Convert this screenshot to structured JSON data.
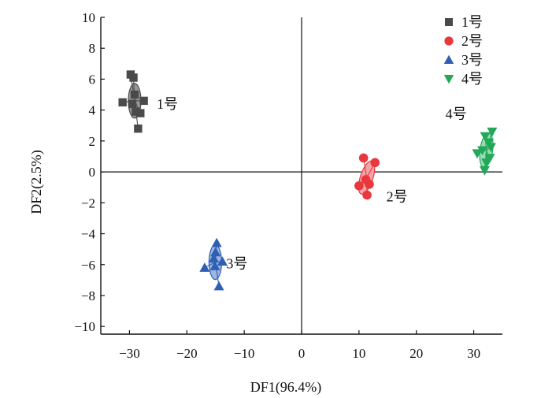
{
  "chart_data": {
    "type": "scatter",
    "title": "",
    "xlabel": "DF1(96.4%)",
    "ylabel": "DF2(2.5%)",
    "xlim": [
      -35,
      35
    ],
    "ylim": [
      -10.5,
      10
    ],
    "xticks": [
      -30,
      -20,
      -10,
      0,
      10,
      20,
      30
    ],
    "yticks": [
      -10,
      -8,
      -6,
      -4,
      -2,
      0,
      2,
      4,
      6,
      8,
      10
    ],
    "xtick_labels": [
      "−30",
      "−20",
      "−10",
      "0",
      "10",
      "20",
      "30"
    ],
    "ytick_labels": [
      "−10",
      "−8",
      "−6",
      "−4",
      "−2",
      "0",
      "2",
      "4",
      "6",
      "8",
      "10"
    ],
    "reference_lines": {
      "x": 0,
      "y": 0
    },
    "legend_position": "top-right",
    "series": [
      {
        "name": "1号",
        "marker": "square",
        "color": "#4a4a4a",
        "ellipse_color": "#9a9a9a",
        "label": "1号",
        "points": [
          [
            -29.8,
            6.3
          ],
          [
            -29.3,
            6.1
          ],
          [
            -31.2,
            4.5
          ],
          [
            -29.5,
            4.4
          ],
          [
            -28.9,
            3.9
          ],
          [
            -28.1,
            3.8
          ],
          [
            -27.5,
            4.6
          ],
          [
            -28.5,
            2.8
          ],
          [
            -29.1,
            5.0
          ]
        ]
      },
      {
        "name": "2号",
        "marker": "circle",
        "color": "#e8383d",
        "ellipse_color": "#f4a4a7",
        "label": "2号",
        "points": [
          [
            10.8,
            0.9
          ],
          [
            12.8,
            0.6
          ],
          [
            11.2,
            -0.5
          ],
          [
            11.8,
            -0.8
          ],
          [
            10.0,
            -0.9
          ],
          [
            11.4,
            -1.5
          ]
        ]
      },
      {
        "name": "3号",
        "marker": "triangle-up",
        "color": "#2f5fb3",
        "ellipse_color": "#9db7e0",
        "label": "3号",
        "points": [
          [
            -14.8,
            -4.6
          ],
          [
            -15.0,
            -5.2
          ],
          [
            -15.3,
            -5.6
          ],
          [
            -13.8,
            -5.8
          ],
          [
            -16.9,
            -6.2
          ],
          [
            -14.4,
            -7.4
          ],
          [
            -15.1,
            -6.1
          ]
        ]
      },
      {
        "name": "4号",
        "marker": "triangle-down",
        "color": "#23a85a",
        "ellipse_color": "#9fdcb6",
        "label": "4号",
        "points": [
          [
            33.2,
            2.6
          ],
          [
            32.0,
            2.3
          ],
          [
            32.6,
            1.9
          ],
          [
            33.0,
            1.6
          ],
          [
            31.5,
            1.4
          ],
          [
            30.6,
            1.2
          ],
          [
            32.8,
            0.9
          ],
          [
            32.2,
            0.6
          ],
          [
            31.9,
            0.1
          ]
        ]
      }
    ]
  }
}
